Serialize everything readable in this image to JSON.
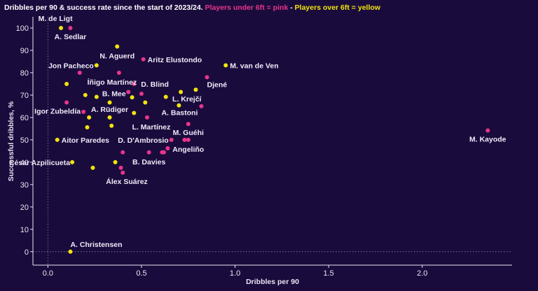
{
  "colors": {
    "background": "#1a0b3d",
    "pink": "#e8358c",
    "yellow": "#f2e40c",
    "text": "#e9e6f2",
    "gridline": "#8a84a8"
  },
  "chart_data": {
    "type": "scatter",
    "title_parts": [
      {
        "text": "Dribbles per 90 & success rate since the start of 2023/24. ",
        "color": "#ffffff"
      },
      {
        "text": "Players under 6ft = pink",
        "color": "#e8358c"
      },
      {
        "text": " - ",
        "color": "#ffffff"
      },
      {
        "text": "Players over 6ft = yellow",
        "color": "#f2e40c"
      }
    ],
    "xlabel": "Dribbles per 90",
    "ylabel": "Successful dribbles, %",
    "xlim": [
      -0.08,
      2.48
    ],
    "ylim": [
      -6,
      105
    ],
    "xticks": [
      "0.0",
      "0.5",
      "1.0",
      "1.5",
      "2.0"
    ],
    "xtick_values": [
      0,
      0.5,
      1.0,
      1.5,
      2.0
    ],
    "yticks": [
      "0",
      "10",
      "20",
      "30",
      "40",
      "50",
      "60",
      "70",
      "80",
      "90",
      "100"
    ],
    "ytick_values": [
      0,
      10,
      20,
      30,
      40,
      50,
      60,
      70,
      80,
      90,
      100
    ],
    "reference_lines": {
      "x": 0,
      "y": 0,
      "style": "dotted"
    },
    "series": [
      {
        "color": "#e8358c",
        "points": [
          {
            "x": 0.12,
            "y": 100.0,
            "label": "A. Sedlar"
          },
          {
            "x": 0.51,
            "y": 86.0,
            "label": "Aritz Elustondo"
          },
          {
            "x": 0.17,
            "y": 80.0,
            "label": ""
          },
          {
            "x": 0.38,
            "y": 80.0,
            "label": "Íñigo Martínez"
          },
          {
            "x": 0.46,
            "y": 75.0,
            "label": "D. Blind"
          },
          {
            "x": 0.43,
            "y": 71.4,
            "label": ""
          },
          {
            "x": 0.5,
            "y": 70.6,
            "label": ""
          },
          {
            "x": 0.85,
            "y": 78.0,
            "label": "Djené"
          },
          {
            "x": 0.82,
            "y": 65.0,
            "label": "L. Krejčí"
          },
          {
            "x": 0.1,
            "y": 66.7,
            "label": "Igor Zubeldía"
          },
          {
            "x": 0.19,
            "y": 62.5,
            "label": ""
          },
          {
            "x": 0.53,
            "y": 60.0,
            "label": "L. Martínez"
          },
          {
            "x": 0.75,
            "y": 57.1,
            "label": "M. Guéhi"
          },
          {
            "x": 0.73,
            "y": 50.0,
            "label": ""
          },
          {
            "x": 0.75,
            "y": 50.0,
            "label": "Angeliño"
          },
          {
            "x": 0.66,
            "y": 50.0,
            "label": "D. D'Ambrosio"
          },
          {
            "x": 0.4,
            "y": 44.4,
            "label": ""
          },
          {
            "x": 0.54,
            "y": 44.4,
            "label": "B. Davies"
          },
          {
            "x": 0.61,
            "y": 44.4,
            "label": ""
          },
          {
            "x": 0.62,
            "y": 44.4,
            "label": ""
          },
          {
            "x": 0.64,
            "y": 46.2,
            "label": ""
          },
          {
            "x": 0.39,
            "y": 37.5,
            "label": ""
          },
          {
            "x": 0.4,
            "y": 35.3,
            "label": "Álex Suárez"
          },
          {
            "x": 2.35,
            "y": 54.2,
            "label": "M. Kayode"
          }
        ]
      },
      {
        "color": "#f2e40c",
        "points": [
          {
            "x": 0.07,
            "y": 100.0,
            "label": "M. de Ligt"
          },
          {
            "x": 0.37,
            "y": 91.7,
            "label": "N. Aguerd"
          },
          {
            "x": 0.26,
            "y": 83.3,
            "label": "Jon Pacheco"
          },
          {
            "x": 0.95,
            "y": 83.3,
            "label": "M. van de Ven"
          },
          {
            "x": 0.1,
            "y": 75.0,
            "label": ""
          },
          {
            "x": 0.71,
            "y": 71.4,
            "label": ""
          },
          {
            "x": 0.79,
            "y": 72.4,
            "label": ""
          },
          {
            "x": 0.2,
            "y": 70.0,
            "label": ""
          },
          {
            "x": 0.26,
            "y": 69.2,
            "label": "B. Mee"
          },
          {
            "x": 0.45,
            "y": 69.0,
            "label": ""
          },
          {
            "x": 0.63,
            "y": 69.2,
            "label": ""
          },
          {
            "x": 0.33,
            "y": 66.7,
            "label": ""
          },
          {
            "x": 0.52,
            "y": 66.7,
            "label": ""
          },
          {
            "x": 0.7,
            "y": 65.4,
            "label": "A. Bastoni"
          },
          {
            "x": 0.46,
            "y": 62.0,
            "label": ""
          },
          {
            "x": 0.22,
            "y": 60.0,
            "label": ""
          },
          {
            "x": 0.33,
            "y": 60.0,
            "label": "A. Rüdiger"
          },
          {
            "x": 0.21,
            "y": 55.6,
            "label": ""
          },
          {
            "x": 0.34,
            "y": 56.3,
            "label": ""
          },
          {
            "x": 0.05,
            "y": 50.0,
            "label": "Aitor Paredes"
          },
          {
            "x": 0.13,
            "y": 40.0,
            "label": "César Azpilicueta"
          },
          {
            "x": 0.24,
            "y": 37.5,
            "label": ""
          },
          {
            "x": 0.36,
            "y": 40.0,
            "label": ""
          },
          {
            "x": 0.12,
            "y": 0.0,
            "label": "A. Christensen"
          }
        ]
      }
    ]
  }
}
